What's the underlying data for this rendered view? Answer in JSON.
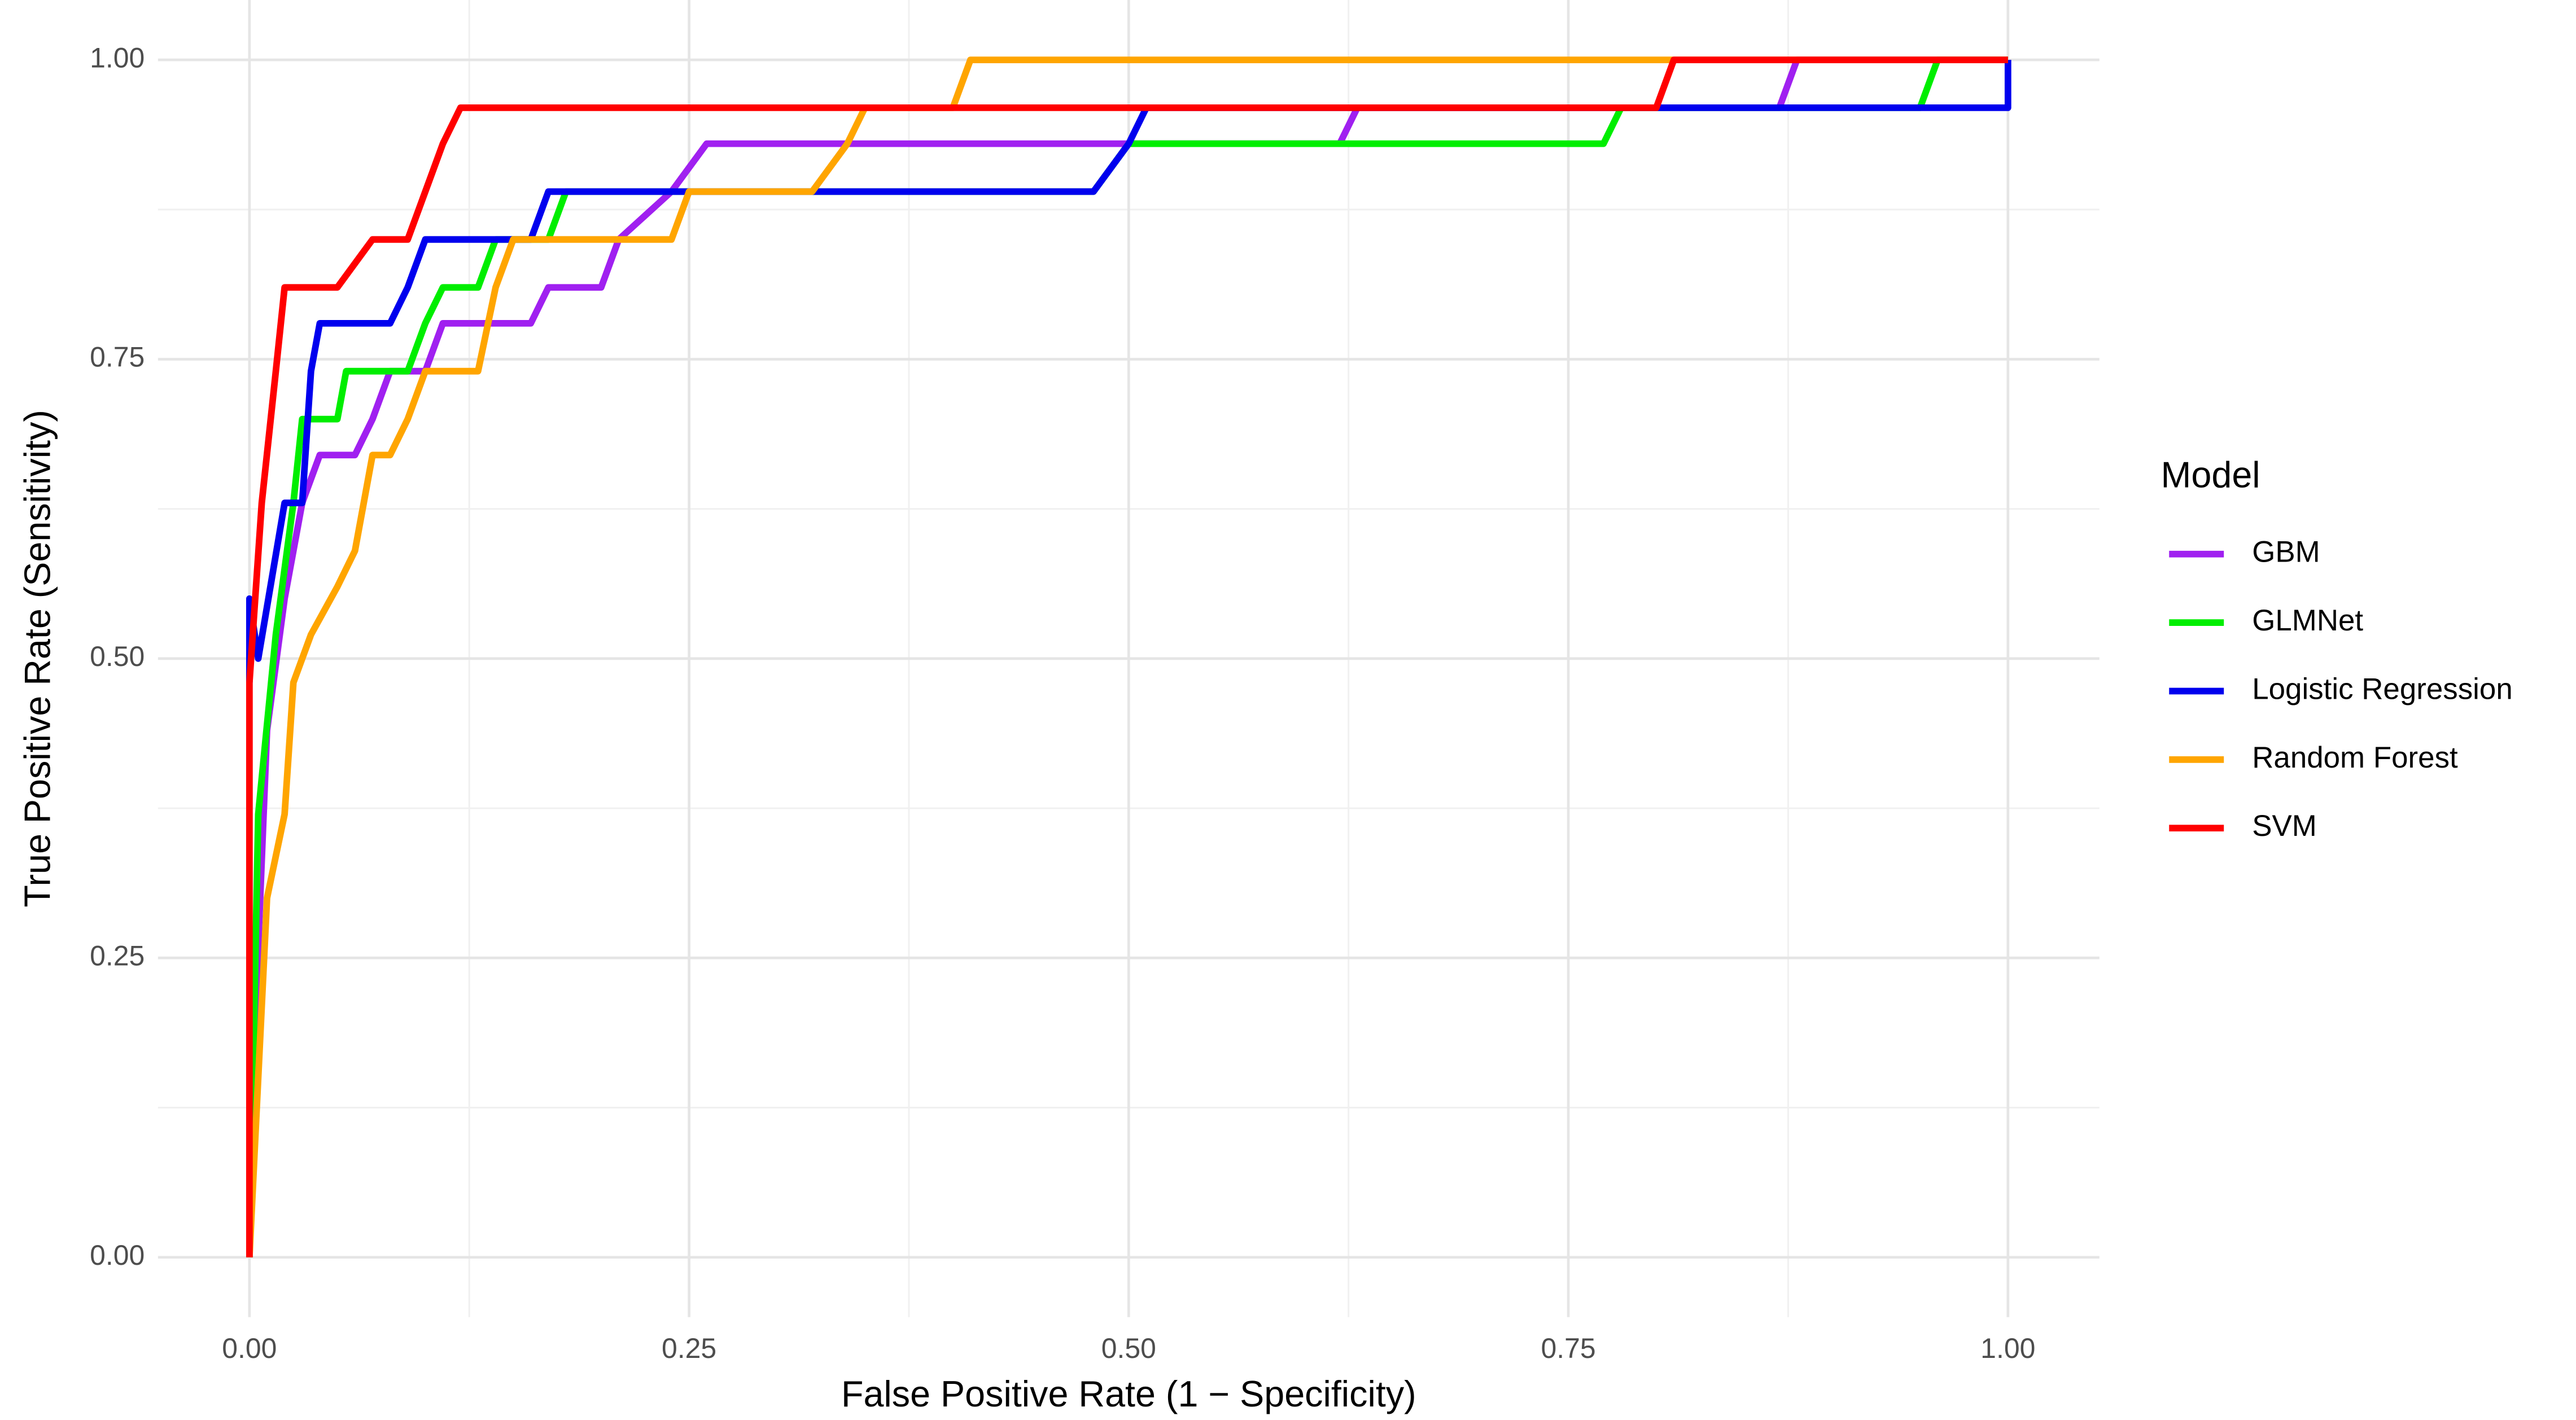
{
  "chart_data": {
    "type": "line",
    "x_label": "False Positive Rate (1 − Specificity)",
    "y_label": "True Positive Rate (Sensitivity)",
    "legend_title": "Model",
    "legend_position": "right",
    "grid": true,
    "xlim": [
      -0.052,
      1.052
    ],
    "ylim": [
      -0.05,
      1.05
    ],
    "xticks": [
      {
        "value": 0,
        "label": "0.00"
      },
      {
        "value": 0.25,
        "label": "0.25"
      },
      {
        "value": 0.5,
        "label": "0.50"
      },
      {
        "value": 0.75,
        "label": "0.75"
      },
      {
        "value": 1,
        "label": "1.00"
      }
    ],
    "yticks": [
      {
        "value": 0,
        "label": "0.00"
      },
      {
        "value": 0.25,
        "label": "0.25"
      },
      {
        "value": 0.5,
        "label": "0.50"
      },
      {
        "value": 0.75,
        "label": "0.75"
      },
      {
        "value": 1,
        "label": "1.00"
      }
    ],
    "x_minor_ticks": [
      0.125,
      0.375,
      0.625,
      0.875
    ],
    "y_minor_ticks": [
      0.125,
      0.375,
      0.625,
      0.875
    ],
    "series": [
      {
        "name": "GBM",
        "color": "#a020f0",
        "x": [
          0,
          0.005,
          0.01,
          0.02,
          0.03,
          0.04,
          0.06,
          0.07,
          0.08,
          0.1,
          0.11,
          0.16,
          0.17,
          0.2,
          0.21,
          0.24,
          0.26,
          0.62,
          0.63,
          0.87,
          0.88,
          1
        ],
        "values": [
          0,
          0.26,
          0.44,
          0.55,
          0.63,
          0.67,
          0.67,
          0.7,
          0.74,
          0.74,
          0.78,
          0.78,
          0.81,
          0.81,
          0.85,
          0.89,
          0.93,
          0.93,
          0.96,
          0.96,
          1,
          1
        ]
      },
      {
        "name": "GLMNet",
        "color": "#00ee00",
        "x": [
          0,
          0.005,
          0.015,
          0.025,
          0.03,
          0.05,
          0.055,
          0.09,
          0.1,
          0.11,
          0.13,
          0.14,
          0.17,
          0.18,
          0.48,
          0.5,
          0.77,
          0.78,
          0.95,
          0.96,
          1
        ],
        "values": [
          0,
          0.37,
          0.52,
          0.63,
          0.7,
          0.7,
          0.74,
          0.74,
          0.78,
          0.81,
          0.81,
          0.85,
          0.85,
          0.89,
          0.89,
          0.93,
          0.93,
          0.96,
          0.96,
          1,
          1
        ]
      },
      {
        "name": "Logistic Regression",
        "color": "#0000ee",
        "x": [
          0,
          0,
          0.005,
          0.02,
          0.03,
          0.035,
          0.04,
          0.08,
          0.09,
          0.1,
          0.16,
          0.17,
          0.48,
          0.5,
          0.51,
          1,
          1
        ],
        "values": [
          0.48,
          0.55,
          0.5,
          0.63,
          0.63,
          0.74,
          0.78,
          0.78,
          0.81,
          0.85,
          0.85,
          0.89,
          0.89,
          0.93,
          0.96,
          0.96,
          1
        ]
      },
      {
        "name": "Random Forest",
        "color": "#ffa500",
        "x": [
          0,
          0.01,
          0.02,
          0.025,
          0.035,
          0.05,
          0.06,
          0.065,
          0.07,
          0.08,
          0.09,
          0.1,
          0.13,
          0.14,
          0.15,
          0.24,
          0.25,
          0.32,
          0.34,
          0.35,
          0.4,
          0.41,
          1
        ],
        "values": [
          0,
          0.3,
          0.37,
          0.48,
          0.52,
          0.56,
          0.59,
          0.63,
          0.67,
          0.67,
          0.7,
          0.74,
          0.74,
          0.81,
          0.85,
          0.85,
          0.89,
          0.89,
          0.93,
          0.96,
          0.96,
          1,
          1
        ]
      },
      {
        "name": "SVM",
        "color": "#ff0000",
        "x": [
          0,
          0,
          0.007,
          0.015,
          0.02,
          0.05,
          0.07,
          0.09,
          0.1,
          0.11,
          0.12,
          0.8,
          0.81,
          1
        ],
        "values": [
          0,
          0.48,
          0.63,
          0.74,
          0.81,
          0.81,
          0.85,
          0.85,
          0.89,
          0.93,
          0.96,
          0.96,
          1,
          1
        ]
      }
    ]
  }
}
